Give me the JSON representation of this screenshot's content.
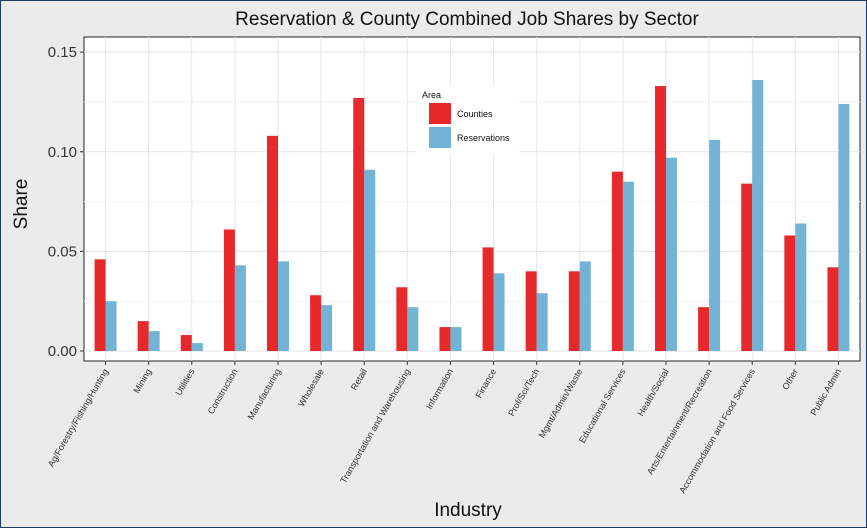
{
  "chart_data": {
    "type": "bar",
    "title": "Reservation & County Combined Job Shares by Sector",
    "xlabel": "Industry",
    "ylabel": "Share",
    "ylim": [
      0,
      0.15
    ],
    "yticks": [
      "0.00",
      "0.05",
      "0.10",
      "0.15"
    ],
    "ytick_values": [
      0,
      0.05,
      0.1,
      0.15
    ],
    "grid": true,
    "legend": {
      "title": "Area",
      "placement": "top-center",
      "entries": [
        "Counties",
        "Reservations"
      ]
    },
    "categories": [
      "Ag/Forestry/Fishing/Hunting",
      "Mining",
      "Utilities",
      "Construction",
      "Manufacturing",
      "Wholesale",
      "Retail",
      "Transportation and Warehousing",
      "Information",
      "Finance",
      "Prof/Sci/Tech",
      "Mgmt/Admin/Waste",
      "Educational Services",
      "Health/Social",
      "Arts/Entertainment/Recreation",
      "Accommodation and Food Services",
      "Other",
      "Public Admin"
    ],
    "series": [
      {
        "name": "Counties",
        "color": "#e8292b",
        "values": [
          0.046,
          0.015,
          0.008,
          0.061,
          0.108,
          0.028,
          0.127,
          0.032,
          0.012,
          0.052,
          0.04,
          0.04,
          0.09,
          0.133,
          0.022,
          0.084,
          0.058,
          0.042
        ]
      },
      {
        "name": "Reservations",
        "color": "#73b4d6",
        "values": [
          0.025,
          0.01,
          0.004,
          0.043,
          0.045,
          0.023,
          0.091,
          0.022,
          0.012,
          0.039,
          0.029,
          0.045,
          0.085,
          0.097,
          0.106,
          0.136,
          0.064,
          0.124
        ]
      }
    ]
  }
}
